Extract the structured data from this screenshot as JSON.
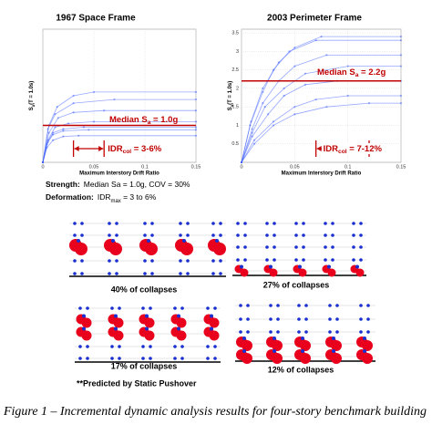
{
  "panels": [
    {
      "title": "1967 Space Frame",
      "x_label": "Maximum Interstory Drift Ratio",
      "y_label": {
        "main": "S",
        "sub": "a",
        "rest": "(T = 1.0s)"
      },
      "xlim": [
        0,
        0.15
      ],
      "ylim": [
        0,
        3.6
      ],
      "xticks": [
        0,
        0.05,
        0.1,
        0.15
      ],
      "median": {
        "value": 1.0,
        "label": {
          "main": "Median S",
          "sub": "a",
          "rest": " = 1.0g"
        }
      },
      "idr_range": {
        "values": [
          0.03,
          0.06
        ],
        "label": {
          "main": "IDR",
          "sub": "col",
          "rest": " = 3-6%"
        }
      },
      "curves": [
        {
          "x": [
            0,
            0.004,
            0.01,
            0.02,
            0.04,
            0.15
          ],
          "y": [
            0,
            0.5,
            0.8,
            0.9,
            0.95,
            0.95
          ]
        },
        {
          "x": [
            0,
            0.005,
            0.012,
            0.025,
            0.05,
            0.15
          ],
          "y": [
            0,
            0.6,
            0.95,
            1.05,
            1.1,
            1.1
          ]
        },
        {
          "x": [
            0,
            0.006,
            0.015,
            0.03,
            0.06,
            0.15
          ],
          "y": [
            0,
            0.8,
            1.2,
            1.35,
            1.4,
            1.4
          ]
        },
        {
          "x": [
            0,
            0.005,
            0.012,
            0.03,
            0.07,
            0.15
          ],
          "y": [
            0,
            0.9,
            1.3,
            1.6,
            1.7,
            1.7
          ]
        },
        {
          "x": [
            0,
            0.004,
            0.01,
            0.02,
            0.035,
            0.15
          ],
          "y": [
            0,
            0.4,
            0.6,
            0.7,
            0.72,
            0.72
          ]
        },
        {
          "x": [
            0,
            0.006,
            0.014,
            0.03,
            0.05,
            0.15
          ],
          "y": [
            0,
            1.0,
            1.5,
            1.8,
            1.9,
            1.9
          ]
        },
        {
          "x": [
            0,
            0.005,
            0.01,
            0.02,
            0.045,
            0.15
          ],
          "y": [
            0,
            0.55,
            0.75,
            0.85,
            0.88,
            0.88
          ]
        }
      ]
    },
    {
      "title": "2003 Perimeter Frame",
      "x_label": "Maximum Interstory Drift Ratio",
      "y_label": {
        "main": "S",
        "sub": "a",
        "rest": "(T = 1.0s)"
      },
      "xlim": [
        0,
        0.15
      ],
      "ylim": [
        0,
        3.6
      ],
      "xticks": [
        0,
        0.05,
        0.1,
        0.15
      ],
      "yticks": [
        0.5,
        1,
        1.5,
        2,
        2.5,
        3,
        3.5
      ],
      "median": {
        "value": 2.2,
        "label": {
          "main": "Median S",
          "sub": "a",
          "rest": " = 2.2g"
        }
      },
      "idr_range": {
        "values": [
          0.07,
          0.12
        ],
        "label": {
          "main": "IDR",
          "sub": "col",
          "rest": " = 7-12%"
        }
      },
      "curves": [
        {
          "x": [
            0,
            0.01,
            0.025,
            0.04,
            0.06,
            0.09,
            0.15
          ],
          "y": [
            0,
            0.7,
            1.3,
            1.8,
            2.1,
            2.2,
            2.2
          ]
        },
        {
          "x": [
            0,
            0.01,
            0.02,
            0.035,
            0.05,
            0.08,
            0.15
          ],
          "y": [
            0,
            0.9,
            1.6,
            2.2,
            2.6,
            2.9,
            2.9
          ]
        },
        {
          "x": [
            0,
            0.012,
            0.03,
            0.05,
            0.07,
            0.1,
            0.15
          ],
          "y": [
            0,
            0.6,
            1.1,
            1.5,
            1.7,
            1.8,
            1.8
          ]
        },
        {
          "x": [
            0,
            0.008,
            0.02,
            0.03,
            0.045,
            0.07,
            0.15
          ],
          "y": [
            0,
            1.0,
            1.9,
            2.5,
            3.0,
            3.3,
            3.3
          ]
        },
        {
          "x": [
            0,
            0.012,
            0.03,
            0.05,
            0.08,
            0.12,
            0.15
          ],
          "y": [
            0,
            0.5,
            1.0,
            1.3,
            1.5,
            1.6,
            1.6
          ]
        },
        {
          "x": [
            0,
            0.01,
            0.022,
            0.04,
            0.06,
            0.1,
            0.15
          ],
          "y": [
            0,
            0.8,
            1.5,
            2.0,
            2.4,
            2.6,
            2.6
          ]
        },
        {
          "x": [
            0,
            0.009,
            0.02,
            0.035,
            0.05,
            0.075,
            0.15
          ],
          "y": [
            0,
            1.1,
            2.0,
            2.7,
            3.1,
            3.4,
            3.4
          ]
        }
      ]
    }
  ],
  "properties": {
    "strength": {
      "label": "Strength:",
      "text": "Median Sa = 1.0g, COV = 30%"
    },
    "deformation": {
      "label": "Deformation:",
      "text": {
        "main": "IDR",
        "sub": "max",
        "rest": " = 3 to 6%"
      }
    }
  },
  "frames": [
    {
      "caption": "40% of collapses"
    },
    {
      "caption": "27% of collapses"
    },
    {
      "caption": "17% of collapses"
    },
    {
      "caption": "12% of collapses"
    }
  ],
  "note": "**Predicted by Static Pushover",
  "caption": "Figure 1 – Incremental dynamic analysis results for four-story benchmark building"
}
